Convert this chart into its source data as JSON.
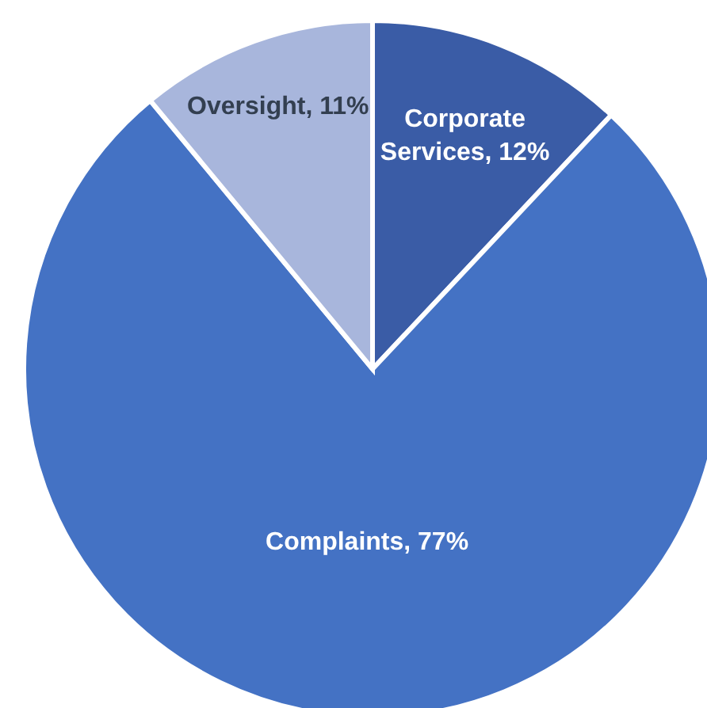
{
  "chart_data": {
    "type": "pie",
    "categories": [
      "Corporate Services",
      "Complaints",
      "Oversight"
    ],
    "values": [
      12,
      77,
      11
    ],
    "value_labels": [
      "12%",
      "77%",
      "11%"
    ],
    "colors": [
      "#3a5ca6",
      "#4472c4",
      "#a8b6dc"
    ]
  }
}
